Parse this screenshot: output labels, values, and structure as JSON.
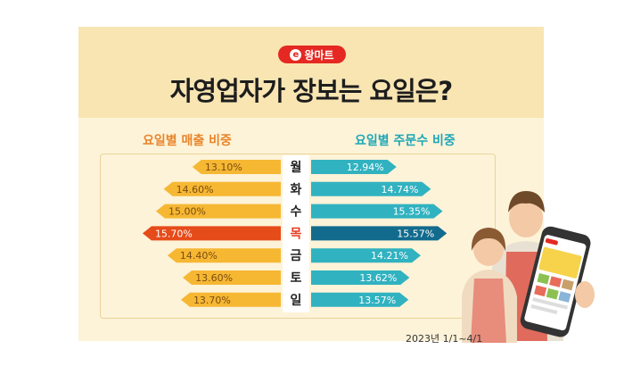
{
  "logo": {
    "text": "왕마트"
  },
  "title": "자영업자가 장보는 요일은?",
  "left_header": "요일별 매출 비중",
  "right_header": "요일별 주문수 비중",
  "date_note": "2023년 1/1~4/1",
  "colors": {
    "sales": "#f6b733",
    "sales_peak": "#e64b1a",
    "orders": "#31b2c0",
    "orders_peak": "#126b8d",
    "peak_day": "#e63a22"
  },
  "chart_data": {
    "type": "bar",
    "categories": [
      "월",
      "화",
      "수",
      "목",
      "금",
      "토",
      "일"
    ],
    "series": [
      {
        "values": [
          13.1,
          14.6,
          15.0,
          15.7,
          14.4,
          13.6,
          13.7
        ],
        "labels": [
          "13.10%",
          "14.60%",
          "15.00%",
          "15.70%",
          "14.40%",
          "13.60%",
          "13.70%"
        ]
      },
      {
        "values": [
          12.94,
          14.74,
          15.35,
          15.57,
          14.21,
          13.62,
          13.57
        ],
        "labels": [
          "12.94%",
          "14.74%",
          "15.35%",
          "15.57%",
          "14.21%",
          "13.62%",
          "13.57%"
        ]
      }
    ],
    "peak_index": 3
  }
}
